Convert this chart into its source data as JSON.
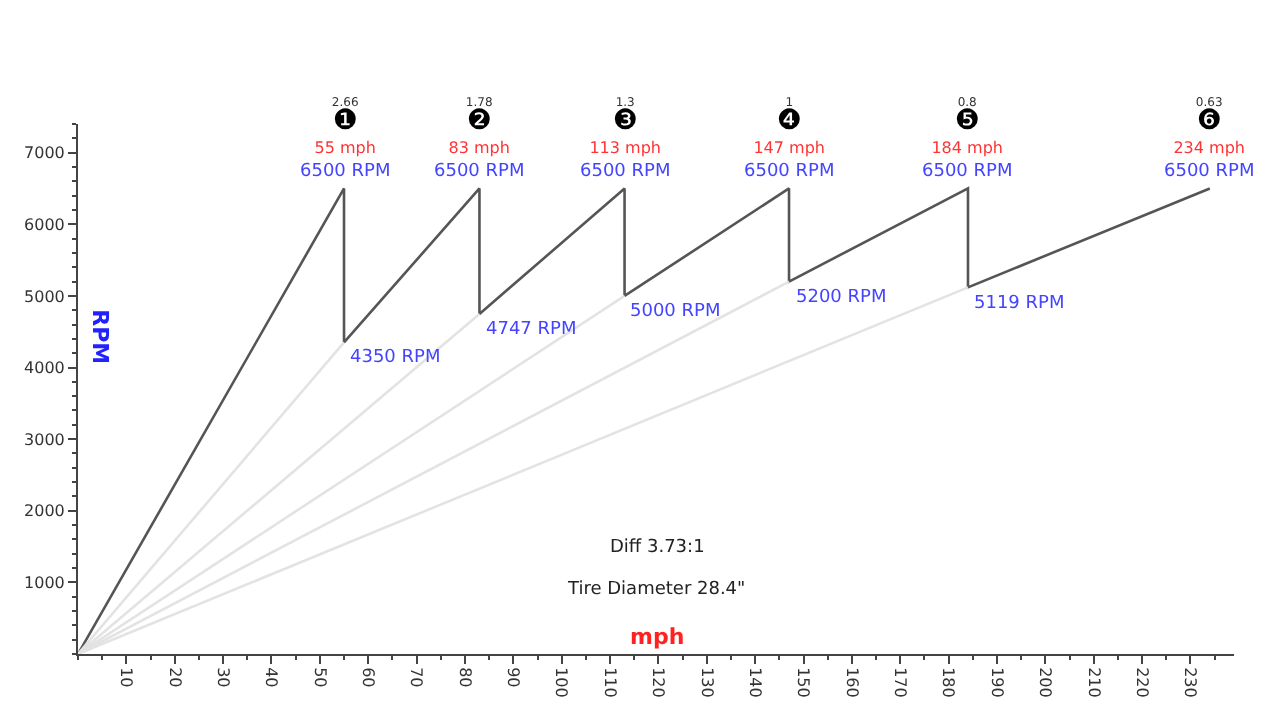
{
  "chart_data": {
    "type": "line",
    "xlabel": "mph",
    "ylabel": "RPM",
    "series": [
      {
        "color": "#555555",
        "x": [
          0,
          55,
          55,
          83,
          83,
          113,
          113,
          147,
          147,
          184,
          184,
          234
        ],
        "values": [
          0,
          6500,
          4350,
          6500,
          4747,
          6500,
          5000,
          6500,
          5200,
          6500,
          5119,
          6500
        ]
      },
      {
        "color": "#e3e3e3",
        "x": [
          0,
          55
        ],
        "values": [
          0,
          4350
        ]
      },
      {
        "color": "#e3e3e3",
        "x": [
          0,
          83
        ],
        "values": [
          0,
          4747
        ]
      },
      {
        "color": "#e3e3e3",
        "x": [
          0,
          113
        ],
        "values": [
          0,
          5000
        ]
      },
      {
        "color": "#e3e3e3",
        "x": [
          0,
          147
        ],
        "values": [
          0,
          5200
        ]
      },
      {
        "color": "#e3e3e3",
        "x": [
          0,
          184
        ],
        "values": [
          0,
          5119
        ]
      }
    ],
    "marker": "none",
    "line_style": "solid",
    "xlim": [
      0,
      239
    ],
    "ylim": [
      0,
      7400
    ],
    "xticks": [
      10,
      20,
      30,
      40,
      50,
      60,
      70,
      80,
      90,
      100,
      110,
      120,
      130,
      140,
      150,
      160,
      170,
      180,
      190,
      200,
      210,
      220,
      230
    ],
    "yticks": [
      1000,
      2000,
      3000,
      4000,
      5000,
      6000,
      7000
    ],
    "annotations": [
      {
        "text": "2.66\n❶\n55 mph\n6500 RPM",
        "x": 55,
        "y": 6500
      },
      {
        "text": "1.78\n❷\n83 mph\n6500 RPM",
        "x": 83,
        "y": 6500
      },
      {
        "text": "1.3\n❸\n113 mph\n6500 RPM",
        "x": 113,
        "y": 6500
      },
      {
        "text": "1\n❹\n147 mph\n6500 RPM",
        "x": 147,
        "y": 6500
      },
      {
        "text": "0.8\n❺\n184 mph\n6500 RPM",
        "x": 184,
        "y": 6500
      },
      {
        "text": "0.63\n❻\n234 mph\n6500 RPM",
        "x": 234,
        "y": 6500
      },
      {
        "text": "4350 RPM",
        "x": 55,
        "y": 4350
      },
      {
        "text": "4747 RPM",
        "x": 83,
        "y": 4747
      },
      {
        "text": "5000 RPM",
        "x": 113,
        "y": 5000
      },
      {
        "text": "5200 RPM",
        "x": 147,
        "y": 5200
      },
      {
        "text": "5119 RPM",
        "x": 184,
        "y": 5119
      },
      "Diff 3.73:1",
      "Tire Diameter 28.4\""
    ]
  }
}
